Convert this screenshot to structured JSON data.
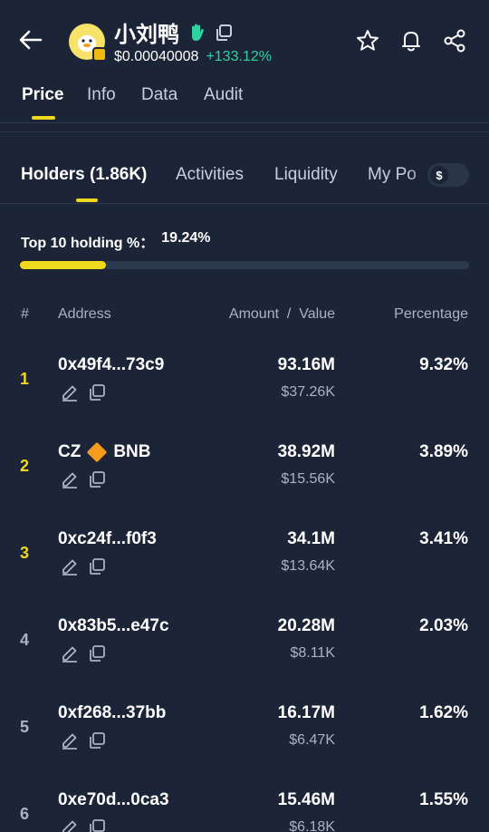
{
  "header": {
    "token_name": "小刘鸭",
    "price": "$0.00040008",
    "change": "+133.12%"
  },
  "main_tabs": [
    {
      "label": "Price",
      "active": true
    },
    {
      "label": "Info",
      "active": false
    },
    {
      "label": "Data",
      "active": false
    },
    {
      "label": "Audit",
      "active": false
    }
  ],
  "sub_tabs": [
    {
      "label": "Holders (1.86K)",
      "active": true
    },
    {
      "label": "Activities",
      "active": false
    },
    {
      "label": "Liquidity",
      "active": false
    },
    {
      "label": "My Po",
      "active": false
    }
  ],
  "currency_toggle": "$",
  "top10": {
    "label": "Top 10 holding %：",
    "value": "19.24%",
    "fraction": 0.1924
  },
  "columns": {
    "rank": "#",
    "address": "Address",
    "amount_value": "Amount  /  Value",
    "percentage": "Percentage"
  },
  "holders": [
    {
      "rank": "1",
      "address": "0x49f4...73c9",
      "amount": "93.16M",
      "value": "$37.26K",
      "percentage": "9.32%"
    },
    {
      "rank": "2",
      "address": "CZ",
      "address_suffix": "BNB",
      "amount": "38.92M",
      "value": "$15.56K",
      "percentage": "3.89%"
    },
    {
      "rank": "3",
      "address": "0xc24f...f0f3",
      "amount": "34.1M",
      "value": "$13.64K",
      "percentage": "3.41%"
    },
    {
      "rank": "4",
      "address": "0x83b5...e47c",
      "amount": "20.28M",
      "value": "$8.11K",
      "percentage": "2.03%"
    },
    {
      "rank": "5",
      "address": "0xf268...37bb",
      "amount": "16.17M",
      "value": "$6.47K",
      "percentage": "1.62%"
    },
    {
      "rank": "6",
      "address": "0xe70d...0ca3",
      "amount": "15.46M",
      "value": "$6.18K",
      "percentage": "1.55%"
    }
  ],
  "colors": {
    "background": "#1b2537",
    "accent_yellow": "#f0d81c",
    "positive_green": "#2ed3a0",
    "muted_text": "#aab3c2",
    "top_rank": "#f0d81c",
    "other_rank": "#aab3c2"
  },
  "icons": {
    "back": "arrow-left-icon",
    "verified": "hand-icon",
    "copy": "copy-icon",
    "favorite": "star-icon",
    "alert": "bell-icon",
    "share": "share-icon",
    "edit": "pencil-icon",
    "bnb": "bnb-diamond-icon"
  }
}
